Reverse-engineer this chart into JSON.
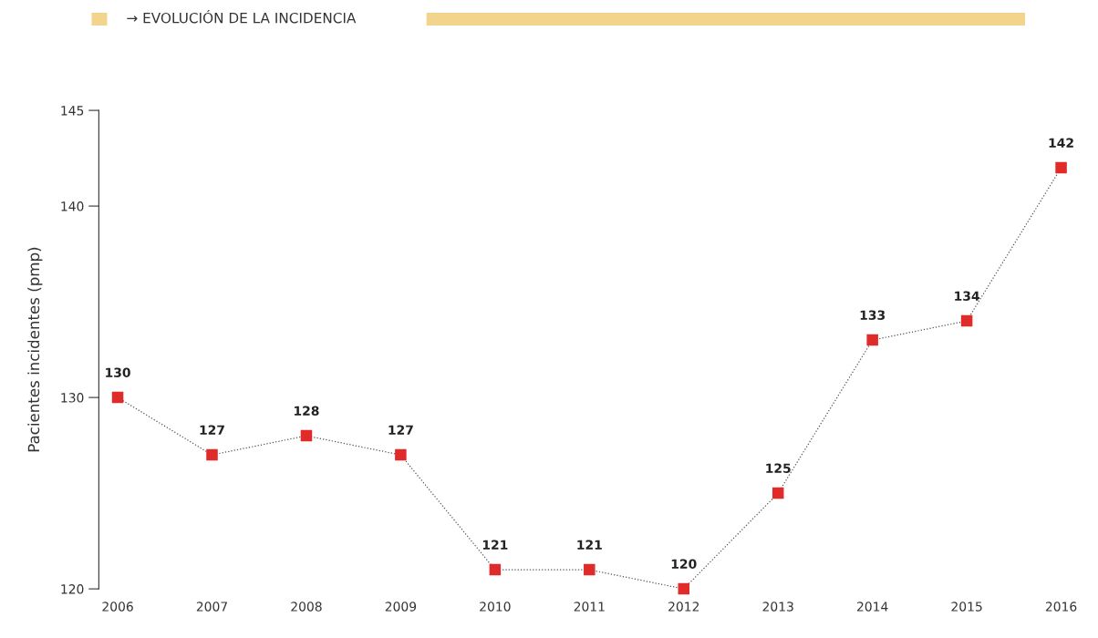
{
  "chart_data": {
    "type": "line",
    "title": "→ EVOLUCIÓN DE LA INCIDENCIA",
    "ylabel": "Pacientes incidentes (pmp)",
    "categories": [
      "2006",
      "2007",
      "2008",
      "2009",
      "2010",
      "2011",
      "2012",
      "2013",
      "2014",
      "2015",
      "2016"
    ],
    "series": [
      {
        "color": "#e02b2b",
        "values": [
          130,
          127,
          128,
          127,
          121,
          121,
          120,
          125,
          133,
          134,
          142
        ]
      }
    ],
    "ylim": [
      120,
      145
    ],
    "yticks": [
      120,
      130,
      140,
      145
    ],
    "data_labels": true,
    "marker": "square",
    "line_style": "dotted",
    "grid": false,
    "legend": false
  }
}
